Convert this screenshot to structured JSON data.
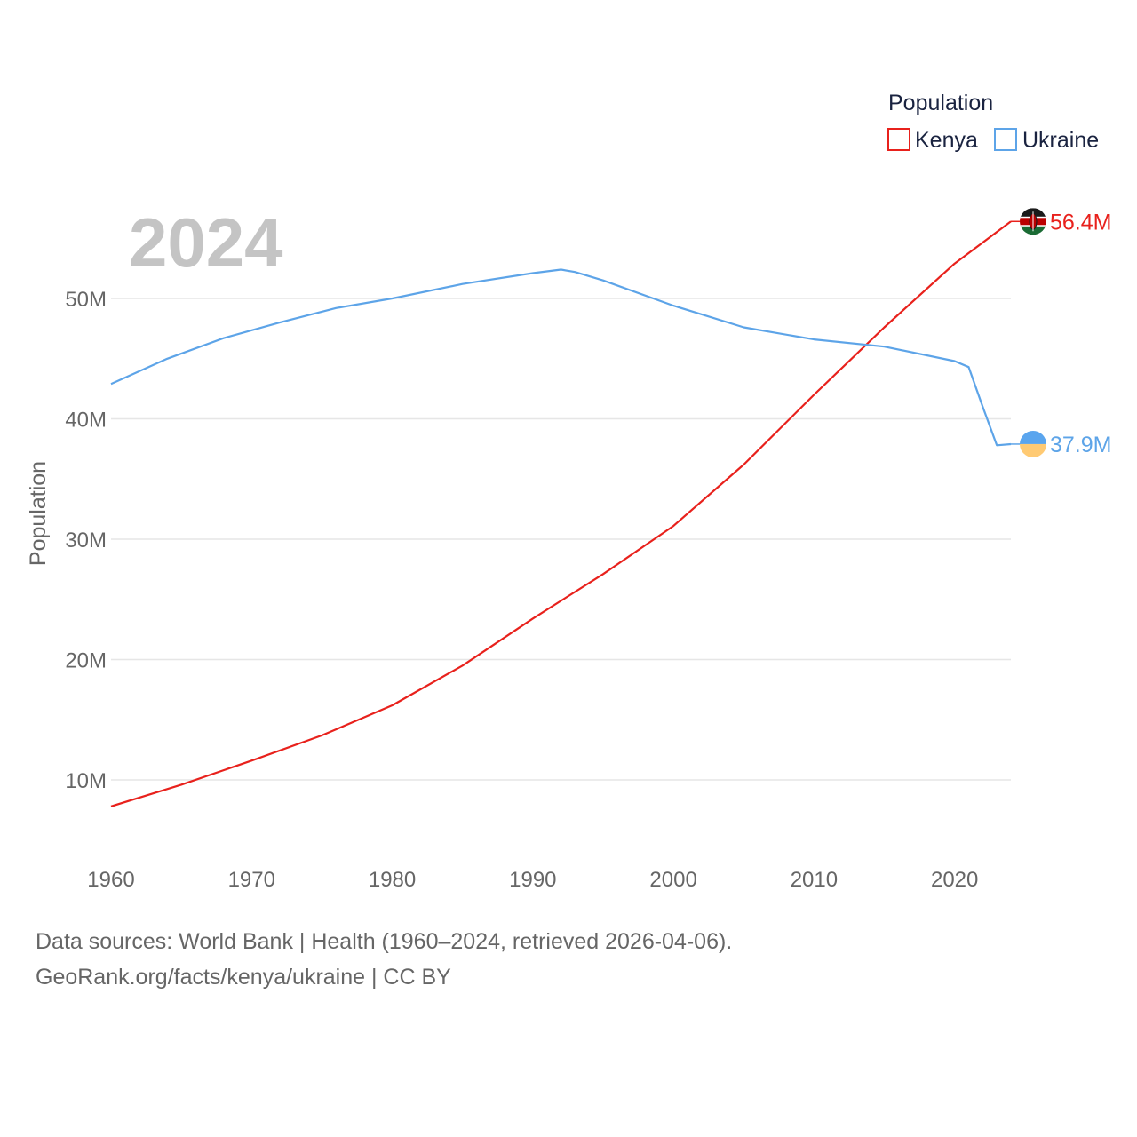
{
  "chart_data": {
    "type": "line",
    "year_label": "2024",
    "ylabel": "Population",
    "legend_title": "Population",
    "x_ticks": [
      "1960",
      "1970",
      "1980",
      "1990",
      "2000",
      "2010",
      "2020"
    ],
    "y_ticks": [
      {
        "value": 10000000,
        "label": "10M"
      },
      {
        "value": 20000000,
        "label": "20M"
      },
      {
        "value": 30000000,
        "label": "30M"
      },
      {
        "value": 40000000,
        "label": "40M"
      },
      {
        "value": 50000000,
        "label": "50M"
      }
    ],
    "xlim": [
      1960,
      2024
    ],
    "ylim": [
      5000000,
      60000000
    ],
    "grid": true,
    "legend_position": "top-right",
    "series": [
      {
        "name": "Kenya",
        "color": "#e8211c",
        "end_label": "56.4M",
        "flag_icon": "kenya-flag-icon",
        "x": [
          1960,
          1965,
          1970,
          1975,
          1980,
          1985,
          1990,
          1995,
          2000,
          2005,
          2010,
          2015,
          2020,
          2024
        ],
        "values": [
          7800000,
          9600000,
          11600000,
          13700000,
          16200000,
          19500000,
          23400000,
          27100000,
          31100000,
          36200000,
          42000000,
          47600000,
          52900000,
          56400000
        ]
      },
      {
        "name": "Ukraine",
        "color": "#5da4e8",
        "end_label": "37.9M",
        "flag_icon": "ukraine-flag-icon",
        "x": [
          1960,
          1964,
          1968,
          1972,
          1976,
          1980,
          1985,
          1990,
          1992,
          1993,
          1995,
          2000,
          2005,
          2010,
          2015,
          2020,
          2021,
          2022,
          2023,
          2024
        ],
        "values": [
          42900000,
          45000000,
          46700000,
          48000000,
          49200000,
          50000000,
          51200000,
          52100000,
          52400000,
          52200000,
          51500000,
          49400000,
          47600000,
          46600000,
          46000000,
          44800000,
          44300000,
          41000000,
          37800000,
          37900000
        ]
      }
    ]
  },
  "footer": {
    "line1": "Data sources: World Bank | Health (1960–2024, retrieved 2026-04-06).",
    "line2": "GeoRank.org/facts/kenya/ukraine | CC BY"
  }
}
